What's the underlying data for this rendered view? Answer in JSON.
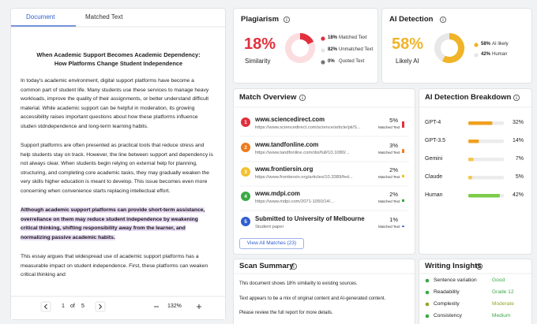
{
  "tabs": [
    "Document",
    "Matched Text"
  ],
  "document": {
    "title": [
      "When Academic Support Becomes Academic Dependency:",
      "How Platforms Change Student Independence"
    ],
    "paragraphs": [
      {
        "text": "In today's academic environment, digital support platforms have become a common part of student life. Many students use these services to manage heavy workloads, improve the quality of their assignments, or better understand difficult material. While academic support can be helpful in moderation, its growing accessibility raises important questions about how these platforms influence studen stdndependence and long-term learning habits.",
        "highlighted": false
      },
      {
        "text": "Support platforms are often presented as practical tools that reduce stress and help students stay on track. However, the line between support and dependency is not always clear. When students begin relying on external help for planning, structuring, and completing core academic tasks, they may gradually weaken the very skills higher education is meant to develop. This issue becomes even more concerning when convenience starts replacing intellectual effort.",
        "highlighted": false
      },
      {
        "text": "Although academic support platforms can provide short-term assistance, overreliance on them may reduce student independence by weakening critical thinking, shifting responsibility away from the learner, and normalizing passive academic habits.",
        "highlighted": true
      },
      {
        "text": "This essay argues that widespread use of academic support platforms has a measurable impact on student independence. First, these platforms can weaken critical thinking and",
        "highlighted": false
      }
    ]
  },
  "pagination": {
    "page": 1,
    "of": "of",
    "total_pages": 5,
    "zoom": "132%"
  },
  "plagiarism": {
    "title": "Plagiarism",
    "score": "18%",
    "score_label": "Similarity",
    "legend": [
      {
        "value": 18,
        "label": "18%",
        "text": "Matched Text",
        "color": "#e0303c"
      },
      {
        "value": 82,
        "label": "82%",
        "text": "Unmatched Text",
        "color": "#fbdde0"
      },
      {
        "value": 0,
        "label": "0%",
        "text": "Quoted Text",
        "color": "#777777"
      }
    ]
  },
  "ai_detection": {
    "title": "AI Detection",
    "score": "58%",
    "score_label": "Likely AI",
    "legend": [
      {
        "value": 58,
        "label": "58%",
        "text": "AI likely",
        "color": "#f0b428"
      },
      {
        "value": 42,
        "label": "42%",
        "text": "Human",
        "color": "#e8e8e8"
      }
    ]
  },
  "match_overview": {
    "title": "Match Overview",
    "matches": [
      {
        "rank": 1,
        "source": "www.sciencedirect.com",
        "detail": "https://www.sciencedirect.com/science/article/pii/S...",
        "value": 5,
        "label": "5%",
        "caption": "Matched Text",
        "color": "#e0303c"
      },
      {
        "rank": 2,
        "source": "www.tandfonline.com",
        "detail": "https://www.tandfonline.com/doi/full/10.1080/...",
        "value": 3,
        "label": "3%",
        "caption": "Matched Text",
        "color": "#f07a1a"
      },
      {
        "rank": 3,
        "source": "www.frontiersin.org",
        "detail": "https://www.frontiersin.org/articles/10.3389/fed...",
        "value": 2,
        "label": "2%",
        "caption": "Matched Text",
        "color": "#f2c12e"
      },
      {
        "rank": 4,
        "source": "www.mdpi.com",
        "detail": "https://www.mdpi.com/2071-1050/14/...",
        "value": 2,
        "label": "2%",
        "caption": "Matched Text",
        "color": "#3aa845"
      },
      {
        "rank": 5,
        "source": "Submitted to University of Melbourne",
        "detail": "Student paper",
        "value": 1,
        "label": "1%",
        "caption": "Matched Text",
        "color": "#2f5fd0"
      }
    ],
    "button": "View All Matches (23)"
  },
  "ai_breakdown": {
    "title": "AI Detection Breakdown",
    "rows": [
      {
        "name": "GPT-4",
        "value": 32,
        "label": "32%",
        "color": "#f0a020"
      },
      {
        "name": "GPT-3.5",
        "value": 14,
        "label": "14%",
        "color": "#f0a020"
      },
      {
        "name": "Gemini",
        "value": 7,
        "label": "7%",
        "color": "#f3c74a"
      },
      {
        "name": "Claude",
        "value": 5,
        "label": "5%",
        "color": "#f3c74a"
      },
      {
        "name": "Human",
        "value": 42,
        "label": "42%",
        "color": "#7ccc4a"
      }
    ]
  },
  "scan_summary": {
    "title": "Scan Summary",
    "lines": [
      "This document shows 18% similarity to existing sources.",
      "Text appears to be a mix of original content and AI-generated content.",
      "Please review the full report for more details."
    ]
  },
  "writing_insights": {
    "title": "Writing Insights",
    "rows": [
      {
        "label": "Sentence variation",
        "value": "Good",
        "color": "#3aa845"
      },
      {
        "label": "Readability",
        "value": "Grade 12",
        "color": "#3aa845"
      },
      {
        "label": "Complexity",
        "value": "Moderate",
        "color": "#8fa62a"
      },
      {
        "label": "Consistency",
        "value": "Medium",
        "color": "#3aa845"
      }
    ]
  }
}
